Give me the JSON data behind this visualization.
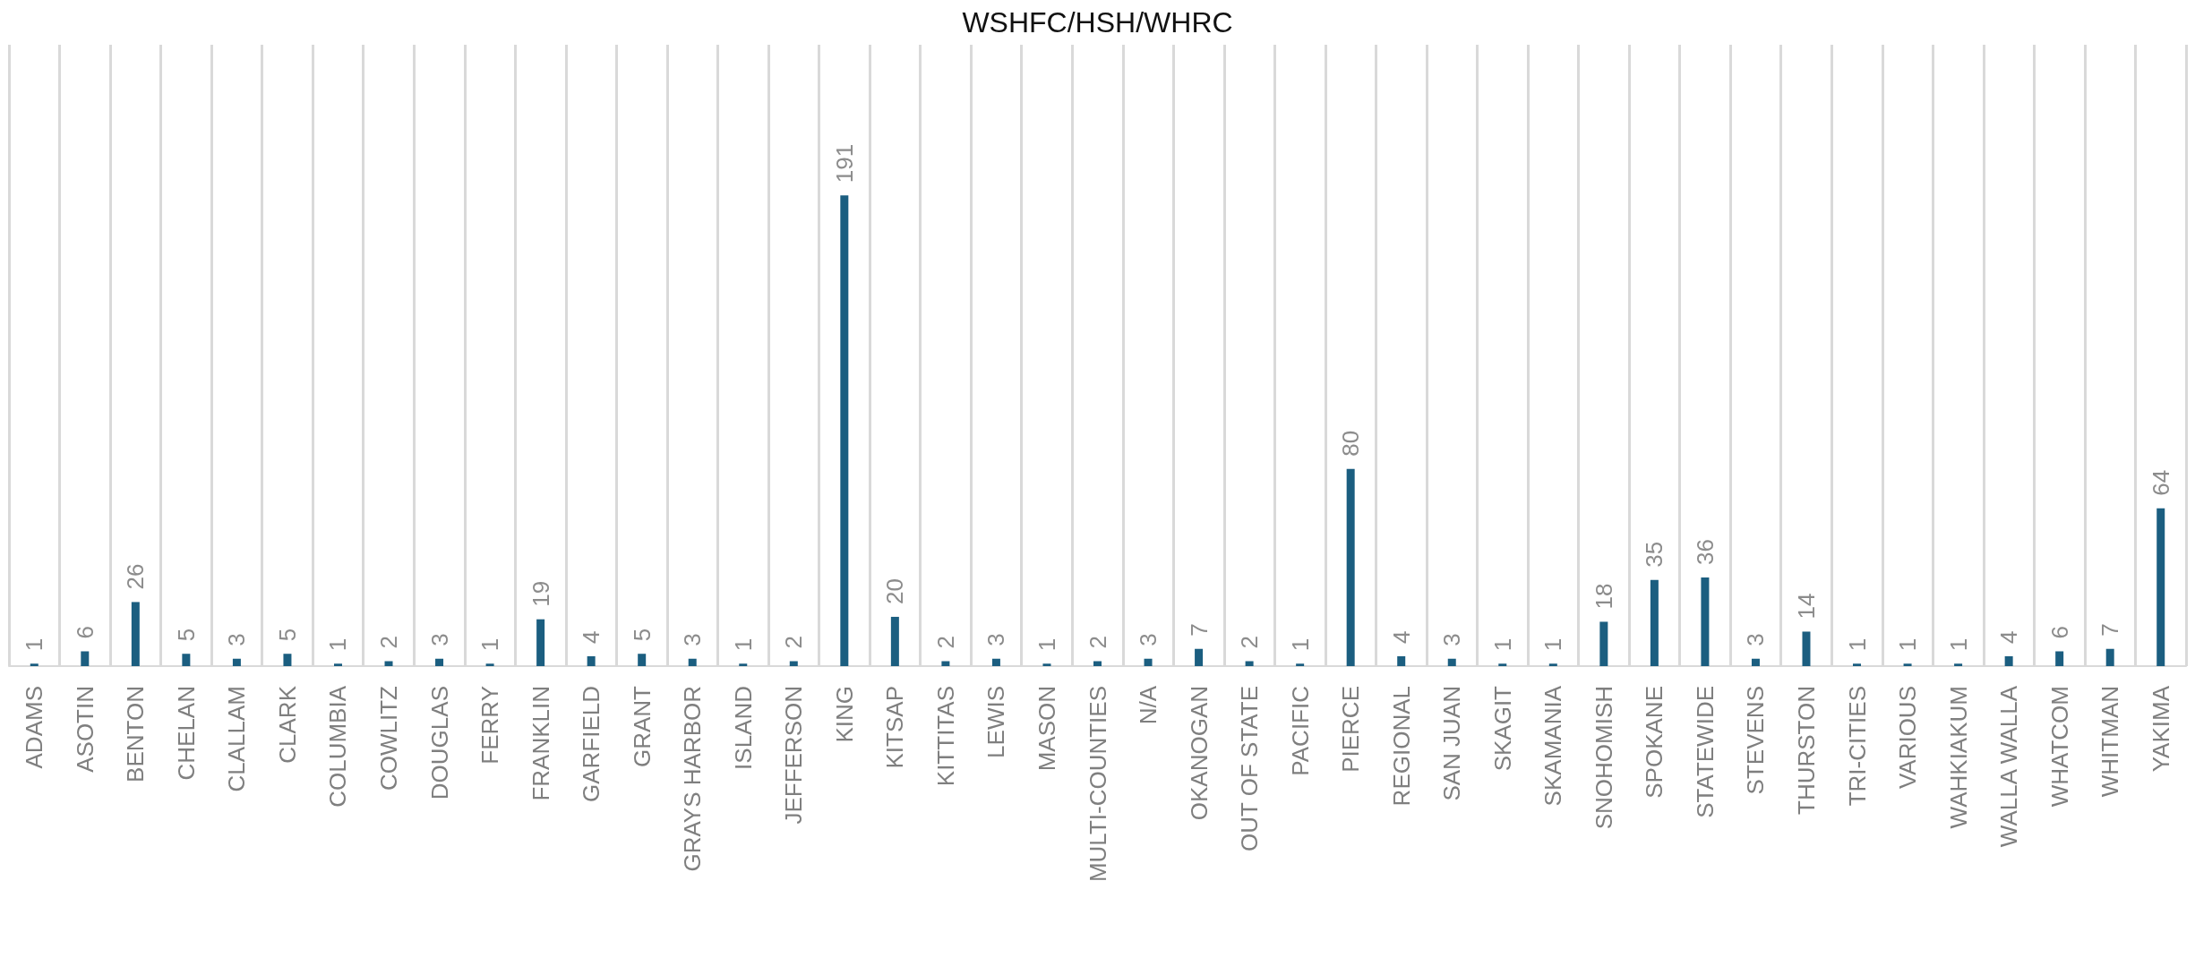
{
  "chart_data": {
    "type": "bar",
    "title": "WSHFC/HSH/WHRC",
    "categories": [
      "ADAMS",
      "ASOTIN",
      "BENTON",
      "CHELAN",
      "CLALLAM",
      "CLARK",
      "COLUMBIA",
      "COWLITZ",
      "DOUGLAS",
      "FERRY",
      "FRANKLIN",
      "GARFIELD",
      "GRANT",
      "GRAYS HARBOR",
      "ISLAND",
      "JEFFERSON",
      "KING",
      "KITSAP",
      "KITTITAS",
      "LEWIS",
      "MASON",
      "MULTI-COUNTIES",
      "N/A",
      "OKANOGAN",
      "OUT OF STATE",
      "PACIFIC",
      "PIERCE",
      "REGIONAL",
      "SAN JUAN",
      "SKAGIT",
      "SKAMANIA",
      "SNOHOMISH",
      "SPOKANE",
      "STATEWIDE",
      "STEVENS",
      "THURSTON",
      "TRI-CITIES",
      "VARIOUS",
      "WAHKIAKUM",
      "WALLA WALLA",
      "WHATCOM",
      "WHITMAN",
      "YAKIMA"
    ],
    "values": [
      1,
      6,
      26,
      5,
      3,
      5,
      1,
      2,
      3,
      1,
      19,
      4,
      5,
      3,
      1,
      2,
      191,
      20,
      2,
      3,
      1,
      2,
      3,
      7,
      2,
      1,
      80,
      4,
      3,
      1,
      1,
      18,
      35,
      36,
      3,
      14,
      1,
      1,
      1,
      4,
      6,
      7,
      64
    ],
    "color": "#1b5e80",
    "data_labels": true,
    "grid": "x"
  }
}
